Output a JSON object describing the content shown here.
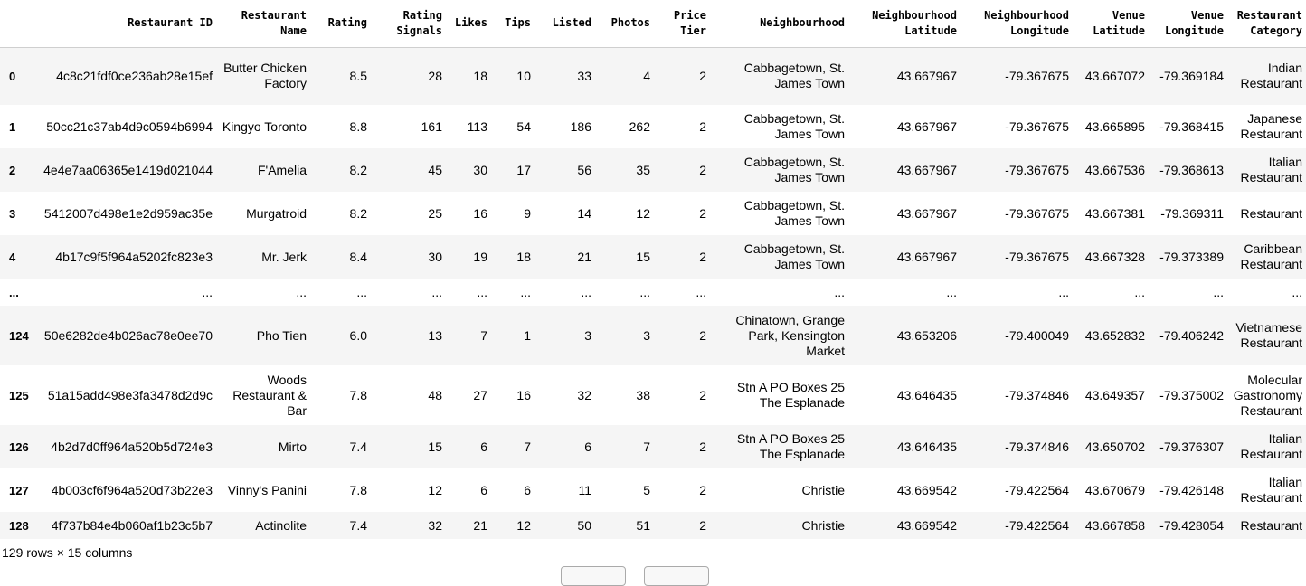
{
  "columns": [
    "",
    "Restaurant ID",
    "Restaurant Name",
    "Rating",
    "Rating Signals",
    "Likes",
    "Tips",
    "Listed",
    "Photos",
    "Price Tier",
    "Neighbourhood",
    "Neighbourhood Latitude",
    "Neighbourhood Longitude",
    "Venue Latitude",
    "Venue Longitude",
    "Restaurant Category"
  ],
  "rows": [
    {
      "index": "0",
      "cells": [
        "4c8c21fdf0ce236ab28e15ef",
        "Butter Chicken Factory",
        "8.5",
        "28",
        "18",
        "10",
        "33",
        "4",
        "2",
        "Cabbagetown, St. James Town",
        "43.667967",
        "-79.367675",
        "43.667072",
        "-79.369184",
        "Indian Restaurant"
      ]
    },
    {
      "index": "1",
      "cells": [
        "50cc21c37ab4d9c0594b6994",
        "Kingyo Toronto",
        "8.8",
        "161",
        "113",
        "54",
        "186",
        "262",
        "2",
        "Cabbagetown, St. James Town",
        "43.667967",
        "-79.367675",
        "43.665895",
        "-79.368415",
        "Japanese Restaurant"
      ]
    },
    {
      "index": "2",
      "cells": [
        "4e4e7aa06365e1419d021044",
        "F'Amelia",
        "8.2",
        "45",
        "30",
        "17",
        "56",
        "35",
        "2",
        "Cabbagetown, St. James Town",
        "43.667967",
        "-79.367675",
        "43.667536",
        "-79.368613",
        "Italian Restaurant"
      ]
    },
    {
      "index": "3",
      "cells": [
        "5412007d498e1e2d959ac35e",
        "Murgatroid",
        "8.2",
        "25",
        "16",
        "9",
        "14",
        "12",
        "2",
        "Cabbagetown, St. James Town",
        "43.667967",
        "-79.367675",
        "43.667381",
        "-79.369311",
        "Restaurant"
      ]
    },
    {
      "index": "4",
      "cells": [
        "4b17c9f5f964a5202fc823e3",
        "Mr. Jerk",
        "8.4",
        "30",
        "19",
        "18",
        "21",
        "15",
        "2",
        "Cabbagetown, St. James Town",
        "43.667967",
        "-79.367675",
        "43.667328",
        "-79.373389",
        "Caribbean Restaurant"
      ]
    },
    {
      "index": "...",
      "cells": [
        "...",
        "...",
        "...",
        "...",
        "...",
        "...",
        "...",
        "...",
        "...",
        "...",
        "...",
        "...",
        "...",
        "...",
        "..."
      ]
    },
    {
      "index": "124",
      "cells": [
        "50e6282de4b026ac78e0ee70",
        "Pho Tien",
        "6.0",
        "13",
        "7",
        "1",
        "3",
        "3",
        "2",
        "Chinatown, Grange Park, Kensington Market",
        "43.653206",
        "-79.400049",
        "43.652832",
        "-79.406242",
        "Vietnamese Restaurant"
      ]
    },
    {
      "index": "125",
      "cells": [
        "51a15add498e3fa3478d2d9c",
        "Woods Restaurant & Bar",
        "7.8",
        "48",
        "27",
        "16",
        "32",
        "38",
        "2",
        "Stn A PO Boxes 25 The Esplanade",
        "43.646435",
        "-79.374846",
        "43.649357",
        "-79.375002",
        "Molecular Gastronomy Restaurant"
      ]
    },
    {
      "index": "126",
      "cells": [
        "4b2d7d0ff964a520b5d724e3",
        "Mirto",
        "7.4",
        "15",
        "6",
        "7",
        "6",
        "7",
        "2",
        "Stn A PO Boxes 25 The Esplanade",
        "43.646435",
        "-79.374846",
        "43.650702",
        "-79.376307",
        "Italian Restaurant"
      ]
    },
    {
      "index": "127",
      "cells": [
        "4b003cf6f964a520d73b22e3",
        "Vinny's Panini",
        "7.8",
        "12",
        "6",
        "6",
        "11",
        "5",
        "2",
        "Christie",
        "43.669542",
        "-79.422564",
        "43.670679",
        "-79.426148",
        "Italian Restaurant"
      ]
    },
    {
      "index": "128",
      "cells": [
        "4f737b84e4b060af1b23c5b7",
        "Actinolite",
        "7.4",
        "32",
        "21",
        "12",
        "50",
        "51",
        "2",
        "Christie",
        "43.669542",
        "-79.422564",
        "43.667858",
        "-79.428054",
        "Restaurant"
      ]
    }
  ],
  "footer": "129 rows × 15 columns"
}
